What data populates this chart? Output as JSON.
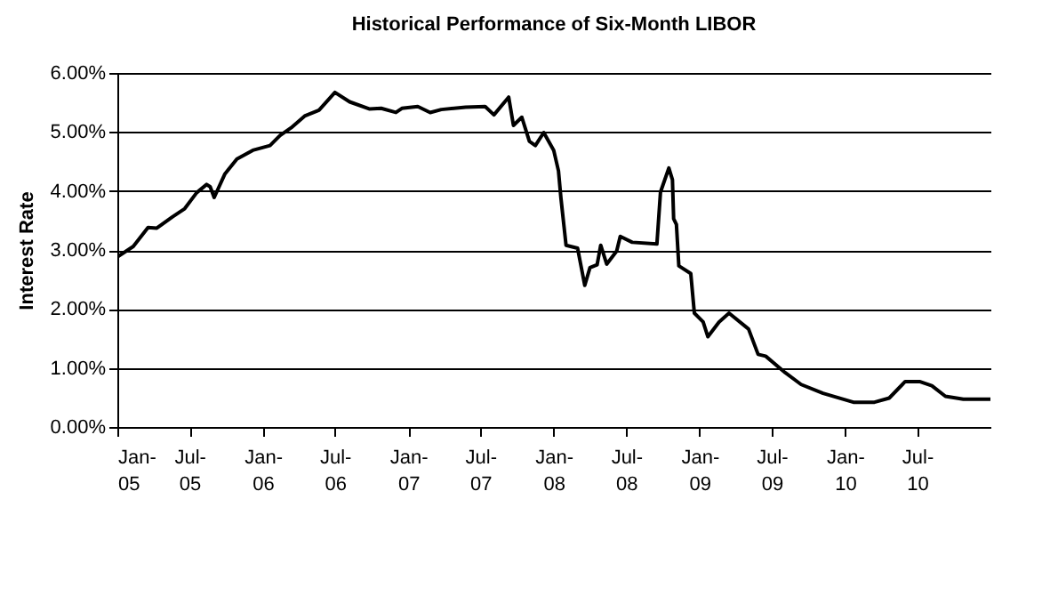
{
  "chart_data": {
    "type": "line",
    "title": "Historical Performance of Six-Month LIBOR",
    "ylabel": "Interest Rate",
    "x": [
      "2005-01-01",
      "2005-02-10",
      "2005-03-19",
      "2005-04-10",
      "2005-05-19",
      "2005-06-19",
      "2005-07-19",
      "2005-08-13",
      "2005-08-22",
      "2005-09-01",
      "2005-09-28",
      "2005-10-28",
      "2005-12-07",
      "2006-01-19",
      "2006-02-13",
      "2006-03-13",
      "2006-04-16",
      "2006-05-22",
      "2006-07-01",
      "2006-08-07",
      "2006-09-25",
      "2006-10-25",
      "2006-12-01",
      "2006-12-16",
      "2007-01-25",
      "2007-02-25",
      "2007-03-25",
      "2007-05-25",
      "2007-07-13",
      "2007-08-04",
      "2007-09-10",
      "2007-09-22",
      "2007-10-13",
      "2007-11-01",
      "2007-11-16",
      "2007-12-07",
      "2008-01-01",
      "2008-01-13",
      "2008-01-19",
      "2008-02-01",
      "2008-03-01",
      "2008-03-19",
      "2008-04-01",
      "2008-04-19",
      "2008-04-28",
      "2008-05-13",
      "2008-06-07",
      "2008-06-16",
      "2008-07-16",
      "2008-09-16",
      "2008-09-25",
      "2008-10-16",
      "2008-10-25",
      "2008-10-28",
      "2008-11-04",
      "2008-11-10",
      "2008-12-10",
      "2008-12-19",
      "2009-01-10",
      "2009-01-22",
      "2009-02-19",
      "2009-03-16",
      "2009-05-04",
      "2009-05-28",
      "2009-06-16",
      "2009-08-04",
      "2009-09-13",
      "2009-11-07",
      "2010-01-22",
      "2010-03-16",
      "2010-04-22",
      "2010-06-01",
      "2010-07-07",
      "2010-08-07",
      "2010-09-10",
      "2010-10-25",
      "2011-01-01"
    ],
    "series": [
      {
        "color": "#000000",
        "values": [
          2.88,
          3.06,
          3.38,
          3.37,
          3.56,
          3.7,
          3.97,
          4.11,
          4.07,
          3.89,
          4.29,
          4.54,
          4.69,
          4.77,
          4.94,
          5.07,
          5.27,
          5.37,
          5.67,
          5.51,
          5.39,
          5.4,
          5.33,
          5.4,
          5.43,
          5.33,
          5.38,
          5.42,
          5.43,
          5.29,
          5.59,
          5.11,
          5.25,
          4.84,
          4.77,
          4.99,
          4.69,
          4.34,
          3.89,
          3.08,
          3.03,
          2.4,
          2.7,
          2.75,
          3.08,
          2.76,
          2.98,
          3.23,
          3.13,
          3.1,
          3.98,
          4.39,
          4.19,
          3.53,
          3.43,
          2.73,
          2.6,
          1.93,
          1.78,
          1.53,
          1.78,
          1.93,
          1.66,
          1.23,
          1.2,
          0.92,
          0.72,
          0.57,
          0.42,
          0.42,
          0.49,
          0.77,
          0.77,
          0.7,
          0.52,
          0.47,
          0.47
        ]
      }
    ],
    "xlim": [
      "2005-01-01",
      "2011-01-01"
    ],
    "xticks": [
      {
        "value": "2005-01",
        "label": "Jan-05"
      },
      {
        "value": "2005-07",
        "label": "Jul-05"
      },
      {
        "value": "2006-01",
        "label": "Jan-06"
      },
      {
        "value": "2006-07",
        "label": "Jul-06"
      },
      {
        "value": "2007-01",
        "label": "Jan-07"
      },
      {
        "value": "2007-07",
        "label": "Jul-07"
      },
      {
        "value": "2008-01",
        "label": "Jan-08"
      },
      {
        "value": "2008-07",
        "label": "Jul-08"
      },
      {
        "value": "2009-01",
        "label": "Jan-09"
      },
      {
        "value": "2009-07",
        "label": "Jul-09"
      },
      {
        "value": "2010-01",
        "label": "Jan-10"
      },
      {
        "value": "2010-07",
        "label": "Jul-10"
      }
    ],
    "ylim": [
      0,
      6
    ],
    "yticks": [
      {
        "value": 0,
        "label": "0.00%"
      },
      {
        "value": 1,
        "label": "1.00%"
      },
      {
        "value": 2,
        "label": "2.00%"
      },
      {
        "value": 3,
        "label": "3.00%"
      },
      {
        "value": 4,
        "label": "4.00%"
      },
      {
        "value": 5,
        "label": "5.00%"
      },
      {
        "value": 6,
        "label": "6.00%"
      }
    ],
    "grid": "y",
    "marker": "none",
    "line_style": "solid"
  }
}
